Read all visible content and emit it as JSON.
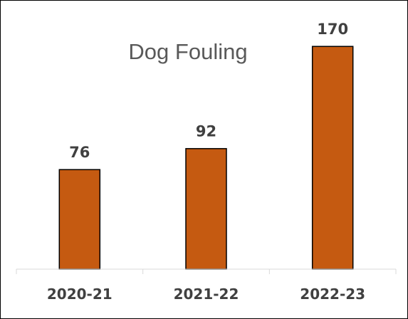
{
  "chart_data": {
    "type": "bar",
    "title": "Dog Fouling",
    "categories": [
      "2020-21",
      "2021-22",
      "2022-23"
    ],
    "values": [
      76,
      92,
      170
    ],
    "data_labels": [
      "76",
      "92",
      "170"
    ],
    "xlabel": "",
    "ylabel": "",
    "ylim": [
      0,
      200
    ],
    "grid": false,
    "legend": "none",
    "colors": {
      "bar_fill": "#C55A11",
      "bar_stroke": "#000000",
      "axis": "#D9D9D9",
      "title": "#595959",
      "label": "#404040"
    }
  }
}
